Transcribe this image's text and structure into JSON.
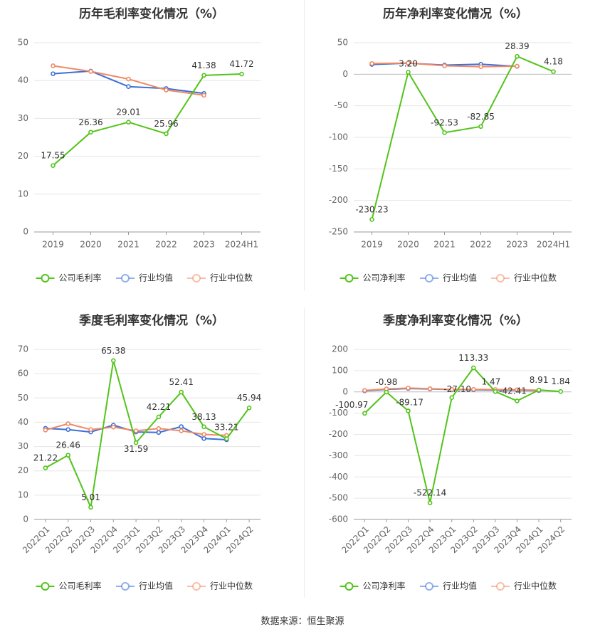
{
  "source_text": "数据来源：恒生聚源",
  "colors": {
    "company": "#52c41a",
    "industry_avg": "#3b6fd8",
    "industry_median": "#f08a64",
    "grid": "#e6e6e6",
    "axis_text": "#666666",
    "title_text": "#333333"
  },
  "chart_data": [
    {
      "type": "line",
      "title": "历年毛利率变化情况（%）",
      "categories": [
        "2019",
        "2020",
        "2021",
        "2022",
        "2023",
        "2024H1"
      ],
      "ylim": [
        0,
        50
      ],
      "yticks": [
        0,
        10,
        20,
        30,
        40,
        50
      ],
      "rotate_labels": false,
      "legend_position": "bottom",
      "series": [
        {
          "name": "公司毛利率",
          "role": "company",
          "labeled": true,
          "values": [
            17.55,
            26.36,
            29.01,
            25.96,
            41.38,
            41.72
          ]
        },
        {
          "name": "行业均值",
          "role": "industry_avg",
          "labeled": false,
          "values": [
            41.8,
            42.5,
            38.4,
            37.9,
            36.6,
            null
          ]
        },
        {
          "name": "行业中位数",
          "role": "industry_median",
          "labeled": false,
          "values": [
            43.9,
            42.4,
            40.4,
            37.5,
            36.1,
            null
          ]
        }
      ]
    },
    {
      "type": "line",
      "title": "历年净利率变化情况（%）",
      "categories": [
        "2019",
        "2020",
        "2021",
        "2022",
        "2023",
        "2024H1"
      ],
      "ylim": [
        -250,
        50
      ],
      "yticks": [
        -250,
        -200,
        -150,
        -100,
        -50,
        0,
        50
      ],
      "rotate_labels": false,
      "legend_position": "bottom",
      "series": [
        {
          "name": "公司净利率",
          "role": "company",
          "labeled": true,
          "values": [
            -230.23,
            3.2,
            -92.53,
            -82.85,
            28.39,
            4.18
          ],
          "labels": [
            "-230.23",
            "3.20",
            "-92.53",
            "-82.85",
            "28.39",
            "4.18"
          ]
        },
        {
          "name": "行业均值",
          "role": "industry_avg",
          "labeled": false,
          "values": [
            15.5,
            17.5,
            14.5,
            15.8,
            12.5,
            null
          ]
        },
        {
          "name": "行业中位数",
          "role": "industry_median",
          "labeled": false,
          "values": [
            17.0,
            17.8,
            13.5,
            12.0,
            12.8,
            null
          ]
        }
      ]
    },
    {
      "type": "line",
      "title": "季度毛利率变化情况（%）",
      "categories": [
        "2022Q1",
        "2022Q2",
        "2022Q3",
        "2022Q4",
        "2023Q1",
        "2023Q2",
        "2023Q3",
        "2023Q4",
        "2024Q1",
        "2024Q2"
      ],
      "ylim": [
        0,
        70
      ],
      "yticks": [
        0,
        10,
        20,
        30,
        40,
        50,
        60,
        70
      ],
      "rotate_labels": true,
      "legend_position": "bottom",
      "series": [
        {
          "name": "公司毛利率",
          "role": "company",
          "labeled": true,
          "values": [
            21.22,
            26.46,
            5.01,
            65.38,
            31.59,
            42.21,
            52.41,
            38.13,
            33.21,
            45.94
          ]
        },
        {
          "name": "行业均值",
          "role": "industry_avg",
          "labeled": false,
          "values": [
            37.5,
            37.0,
            36.0,
            38.8,
            36.0,
            35.8,
            38.2,
            33.3,
            32.8,
            null
          ]
        },
        {
          "name": "行业中位数",
          "role": "industry_median",
          "labeled": false,
          "values": [
            36.8,
            39.4,
            37.0,
            38.0,
            36.5,
            37.4,
            36.5,
            35.0,
            34.6,
            null
          ]
        }
      ]
    },
    {
      "type": "line",
      "title": "季度净利率变化情况（%）",
      "categories": [
        "2022Q1",
        "2022Q2",
        "2022Q3",
        "2022Q4",
        "2023Q1",
        "2023Q2",
        "2023Q3",
        "2023Q4",
        "2024Q1",
        "2024Q2"
      ],
      "ylim": [
        -600,
        200
      ],
      "yticks": [
        -600,
        -500,
        -400,
        -300,
        -200,
        -100,
        0,
        100,
        200
      ],
      "rotate_labels": true,
      "legend_position": "bottom",
      "series": [
        {
          "name": "公司净利率",
          "role": "company",
          "labeled": true,
          "values": [
            -100.97,
            -0.98,
            -89.17,
            -522.14,
            -27.1,
            113.33,
            1.47,
            -42.41,
            8.91,
            1.84
          ],
          "labels": [
            "-100.97",
            "-0.98",
            "-89.17",
            "-522.14",
            "-27.10",
            "113.33",
            "1.47",
            "-42.41",
            "8.91",
            "1.84"
          ]
        },
        {
          "name": "行业均值",
          "role": "industry_avg",
          "labeled": false,
          "values": [
            5.0,
            12.0,
            16.0,
            14.0,
            11.0,
            10.0,
            9.0,
            8.0,
            6.0,
            null
          ]
        },
        {
          "name": "行业中位数",
          "role": "industry_median",
          "labeled": false,
          "values": [
            7.0,
            14.0,
            18.0,
            15.0,
            12.0,
            12.0,
            11.0,
            10.0,
            8.0,
            null
          ]
        }
      ]
    }
  ]
}
